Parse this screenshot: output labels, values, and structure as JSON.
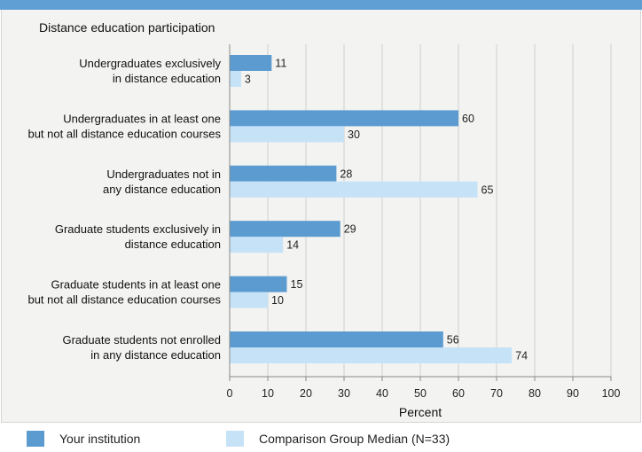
{
  "chart_data": {
    "type": "bar",
    "orientation": "horizontal",
    "title": "Distance education participation",
    "xlabel": "Percent",
    "xlim": [
      0,
      100
    ],
    "xticks": [
      0,
      10,
      20,
      30,
      40,
      50,
      60,
      70,
      80,
      90,
      100
    ],
    "grid": true,
    "legend_position": "bottom",
    "categories": [
      [
        "Undergraduates exclusively",
        "in distance education"
      ],
      [
        "Undergraduates in at least one",
        "but not all distance education courses"
      ],
      [
        "Undergraduates not in",
        "any distance education"
      ],
      [
        "Graduate students exclusively in",
        "distance education"
      ],
      [
        "Graduate students in at least one",
        "but not all distance education courses"
      ],
      [
        "Graduate students not enrolled",
        "in any distance education"
      ]
    ],
    "series": [
      {
        "name": "Your institution",
        "color": "#5b9bd0",
        "values": [
          11,
          60,
          28,
          29,
          15,
          56
        ]
      },
      {
        "name": "Comparison Group Median (N=33)",
        "color": "#c6e2f7",
        "values": [
          3,
          30,
          65,
          14,
          10,
          74
        ]
      }
    ]
  }
}
